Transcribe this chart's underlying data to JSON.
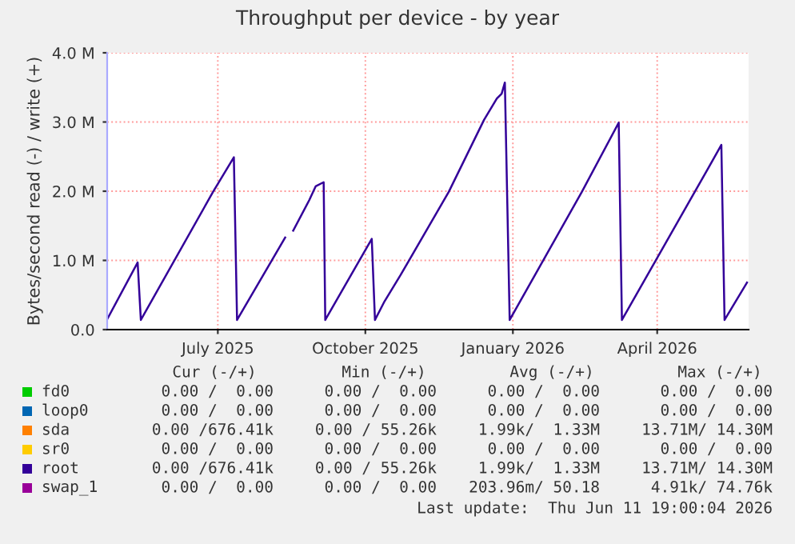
{
  "chart_data": {
    "type": "line",
    "title": "Throughput per device - by year",
    "ylabel": "Bytes/second read (-) / write (+)",
    "xlim": [
      "2025-05-07",
      "2026-06-11"
    ],
    "xticks": [
      {
        "value": "2025-07-15",
        "label": "July 2025"
      },
      {
        "value": "2025-10-15",
        "label": "October 2025"
      },
      {
        "value": "2026-01-15",
        "label": "January 2026"
      },
      {
        "value": "2026-04-15",
        "label": "April 2026"
      }
    ],
    "ylim": [
      0,
      4000000
    ],
    "yticks": [
      {
        "value": 0,
        "label": "0.0"
      },
      {
        "value": 1000000,
        "label": "1.0 M"
      },
      {
        "value": 2000000,
        "label": "2.0 M"
      },
      {
        "value": 3000000,
        "label": "3.0 M"
      },
      {
        "value": 4000000,
        "label": "4.0 M"
      }
    ],
    "grid": true,
    "legend": "bottom",
    "line_style": "solid",
    "series": [
      {
        "name": "fd0",
        "color": "#00cc00"
      },
      {
        "name": "loop0",
        "color": "#0066b3"
      },
      {
        "name": "sda",
        "color": "#ff8000"
      },
      {
        "name": "sr0",
        "color": "#ffcc00"
      },
      {
        "name": "root",
        "color": "#330099",
        "x": [
          "2025-05-07",
          "2025-05-26",
          "2025-05-28",
          "2025-07-12",
          "2025-07-25",
          "2025-07-27",
          "2025-08-26",
          "2025-08-28",
          "2025-08-31",
          "2025-09-10",
          "2025-09-14",
          "2025-09-19",
          "2025-09-20",
          "2025-10-19",
          "2025-10-21",
          "2025-10-27",
          "2025-11-06",
          "2025-12-06",
          "2025-12-28",
          "2026-01-05",
          "2026-01-08",
          "2026-01-10",
          "2026-01-13",
          "2026-02-27",
          "2026-03-22",
          "2026-03-24",
          "2026-05-17",
          "2026-05-25",
          "2026-05-27",
          "2026-06-10"
        ],
        "values": [
          150000,
          970000,
          140000,
          1990000,
          2490000,
          140000,
          1330000,
          null,
          1430000,
          1870000,
          2070000,
          2130000,
          140000,
          1310000,
          140000,
          410000,
          790000,
          1990000,
          3030000,
          3340000,
          3410000,
          3570000,
          140000,
          1990000,
          2990000,
          140000,
          2340000,
          2670000,
          140000,
          680000
        ]
      },
      {
        "name": "swap_1",
        "color": "#990099"
      }
    ],
    "annotations": [
      "Cur (-/+)",
      "Min (-/+)",
      "Avg (-/+)",
      "Max (-/+)",
      "0.00 /  0.00",
      "0.00 /  0.00",
      "0.00 /  0.00",
      "0.00 /  0.00",
      "0.00 /  0.00",
      "0.00 /  0.00",
      "0.00 /  0.00",
      "0.00 /  0.00",
      "0.00 /676.41k",
      "0.00 / 55.26k",
      "1.99k/  1.33M",
      "13.71M/ 14.30M",
      "0.00 /  0.00",
      "0.00 /  0.00",
      "0.00 /  0.00",
      "0.00 /  0.00",
      "0.00 /676.41k",
      "0.00 / 55.26k",
      "1.99k/  1.33M",
      "13.71M/ 14.30M",
      "0.00 /  0.00",
      "0.00 /  0.00",
      "203.96m/ 50.18",
      "4.91k/ 74.76k",
      "Last update:  Thu Jun 11 19:00:04 2026"
    ]
  }
}
